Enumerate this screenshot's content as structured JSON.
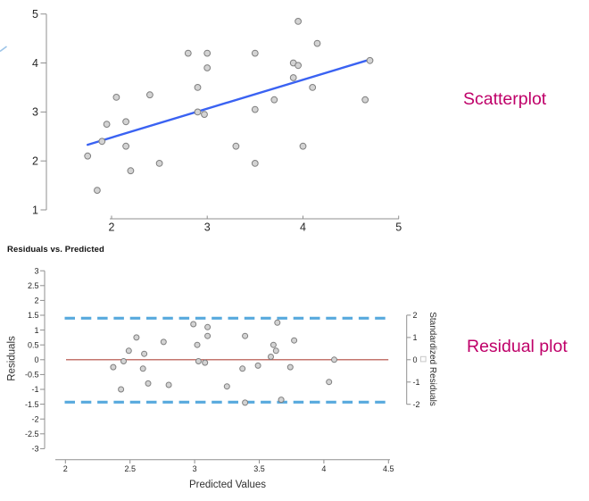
{
  "page": {
    "background": "#ffffff"
  },
  "annotations": {
    "scatter_label": {
      "text": "Scatterplot",
      "color": "#bf0069"
    },
    "residual_label": {
      "text": "Residual plot",
      "color": "#bf0069"
    }
  },
  "chart_data": [
    {
      "id": "scatterplot",
      "type": "scatter",
      "title": "",
      "xlabel": "",
      "ylabel": "",
      "xlim": [
        1.75,
        5
      ],
      "ylim": [
        1,
        5
      ],
      "xticks": [
        2,
        3,
        4,
        5
      ],
      "yticks": [
        5,
        4,
        3,
        2,
        1
      ],
      "grid": false,
      "legend": "none",
      "point_style": {
        "fill": "#d3d3d3",
        "stroke": "#7f7f7f"
      },
      "regression_line": {
        "x1": 1.75,
        "y1": 2.33,
        "x2": 4.7,
        "y2": 4.07,
        "color": "#3a62f2"
      },
      "points": [
        [
          1.75,
          2.1
        ],
        [
          1.85,
          1.4
        ],
        [
          1.9,
          2.4
        ],
        [
          1.95,
          2.75
        ],
        [
          2.05,
          3.3
        ],
        [
          2.15,
          2.8
        ],
        [
          2.15,
          2.3
        ],
        [
          2.2,
          1.8
        ],
        [
          2.4,
          3.35
        ],
        [
          2.5,
          1.95
        ],
        [
          2.8,
          4.2
        ],
        [
          2.9,
          3.5
        ],
        [
          2.9,
          3.0
        ],
        [
          2.97,
          2.95
        ],
        [
          3.0,
          4.2
        ],
        [
          3.0,
          3.9
        ],
        [
          3.3,
          2.3
        ],
        [
          3.5,
          4.2
        ],
        [
          3.5,
          3.05
        ],
        [
          3.5,
          1.95
        ],
        [
          3.7,
          3.25
        ],
        [
          3.9,
          4.0
        ],
        [
          3.95,
          3.95
        ],
        [
          3.9,
          3.7
        ],
        [
          3.95,
          4.85
        ],
        [
          4.0,
          2.3
        ],
        [
          4.1,
          3.5
        ],
        [
          4.15,
          4.4
        ],
        [
          4.65,
          3.25
        ],
        [
          4.7,
          4.05
        ]
      ]
    },
    {
      "id": "residual-plot",
      "type": "scatter",
      "title": "Residuals vs. Predicted",
      "xlabel": "Predicted Values",
      "ylabel": "Residuals",
      "y2label": "Standardized Residuals",
      "xlim": [
        2,
        4.5
      ],
      "ylim": [
        -3,
        3
      ],
      "y2lim": [
        -2,
        2
      ],
      "xticks": [
        2,
        2.5,
        3,
        3.5,
        4,
        4.5
      ],
      "yticks": [
        3,
        2.5,
        2,
        1.5,
        1,
        0.5,
        0,
        -0.5,
        -1,
        -1.5,
        -2,
        -2.5,
        -3
      ],
      "y2ticks": [
        2,
        1,
        0,
        -1,
        -2
      ],
      "grid": false,
      "point_style": {
        "fill": "#d3d3d3",
        "stroke": "#7f7f7f"
      },
      "zero_line": {
        "y": 0,
        "color": "#b0483e"
      },
      "band_lines": {
        "values": [
          1.4,
          -1.43
        ],
        "at_standardized_residuals": [
          2,
          -2
        ],
        "color": "#57a9dd"
      },
      "points": [
        [
          2.37,
          -0.25
        ],
        [
          2.43,
          -1.0
        ],
        [
          2.45,
          -0.05
        ],
        [
          2.49,
          0.3
        ],
        [
          2.55,
          0.75
        ],
        [
          2.61,
          0.2
        ],
        [
          2.6,
          -0.3
        ],
        [
          2.64,
          -0.8
        ],
        [
          2.76,
          0.6
        ],
        [
          2.8,
          -0.85
        ],
        [
          2.99,
          1.2
        ],
        [
          3.02,
          0.5
        ],
        [
          3.03,
          -0.05
        ],
        [
          3.08,
          -0.1
        ],
        [
          3.1,
          1.1
        ],
        [
          3.1,
          0.8
        ],
        [
          3.25,
          -0.9
        ],
        [
          3.37,
          -0.3
        ],
        [
          3.39,
          -1.45
        ],
        [
          3.39,
          0.8
        ],
        [
          3.49,
          -0.2
        ],
        [
          3.59,
          0.1
        ],
        [
          3.61,
          0.5
        ],
        [
          3.63,
          0.3
        ],
        [
          3.64,
          1.25
        ],
        [
          3.67,
          -1.35
        ],
        [
          3.74,
          -0.25
        ],
        [
          3.77,
          0.65
        ],
        [
          4.04,
          -0.75
        ],
        [
          4.08,
          0.0
        ]
      ]
    }
  ]
}
